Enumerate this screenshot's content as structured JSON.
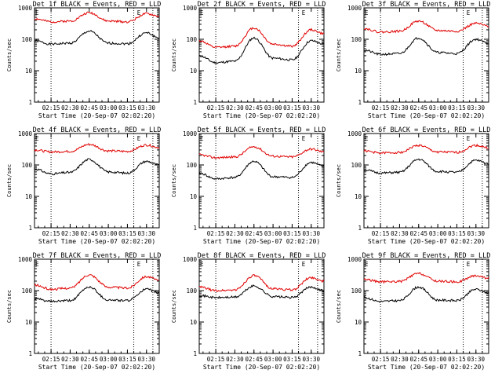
{
  "colors": {
    "events": "#000000",
    "lld": "#e00000",
    "frame": "#000000",
    "background": "#ffffff"
  },
  "chart_data": [
    {
      "type": "line",
      "title": "Det 1f BLACK = Events, RED = LLD",
      "xlabel": "Start Time (20-Sep-07 02:02:20)",
      "ylabel": "Counts/sec",
      "yscale": "log",
      "ylim": [
        1,
        1000
      ],
      "yticks": [
        "1",
        "10",
        "100",
        "1000"
      ],
      "xticks": [
        "02:15",
        "02:30",
        "02:45",
        "03:00",
        "03:15",
        "03:30"
      ],
      "x": [
        "02:02",
        "02:15",
        "02:30",
        "02:45",
        "03:00",
        "03:15",
        "03:30",
        "03:40"
      ],
      "series": [
        {
          "name": "BLACK = Events",
          "values": [
            90,
            70,
            75,
            180,
            75,
            72,
            160,
            110
          ]
        },
        {
          "name": "RED = LLD",
          "values": [
            450,
            360,
            380,
            700,
            380,
            360,
            650,
            540
          ]
        }
      ],
      "markers": [
        "E",
        "E"
      ]
    },
    {
      "type": "line",
      "title": "Det 2f BLACK = Events, RED = LLD",
      "xlabel": "Start Time (20-Sep-07 02:02:20)",
      "ylabel": "Counts/sec",
      "yscale": "log",
      "ylim": [
        1,
        1000
      ],
      "yticks": [
        "1",
        "10",
        "100",
        "1000"
      ],
      "xticks": [
        "02:15",
        "02:30",
        "02:45",
        "03:00",
        "03:15",
        "03:30"
      ],
      "x": [
        "02:02",
        "02:15",
        "02:30",
        "02:45",
        "03:00",
        "03:15",
        "03:30",
        "03:40"
      ],
      "series": [
        {
          "name": "BLACK = Events",
          "values": [
            30,
            18,
            20,
            110,
            25,
            22,
            90,
            70
          ]
        },
        {
          "name": "RED = LLD",
          "values": [
            90,
            55,
            60,
            230,
            70,
            60,
            200,
            150
          ]
        }
      ],
      "markers": [
        "E",
        "E"
      ]
    },
    {
      "type": "line",
      "title": "Det 3f BLACK = Events, RED = LLD",
      "xlabel": "Start Time (20-Sep-07 02:02:20)",
      "ylabel": "Counts/sec",
      "yscale": "log",
      "ylim": [
        1,
        1000
      ],
      "yticks": [
        "1",
        "10",
        "100",
        "1000"
      ],
      "xticks": [
        "02:15",
        "02:30",
        "02:45",
        "03:00",
        "03:15",
        "03:30"
      ],
      "x": [
        "02:02",
        "02:15",
        "02:30",
        "02:45",
        "03:00",
        "03:15",
        "03:30",
        "03:40"
      ],
      "series": [
        {
          "name": "BLACK = Events",
          "values": [
            45,
            33,
            35,
            110,
            38,
            35,
            100,
            75
          ]
        },
        {
          "name": "RED = LLD",
          "values": [
            220,
            170,
            180,
            380,
            190,
            180,
            320,
            260
          ]
        }
      ],
      "markers": [
        "E",
        "E"
      ]
    },
    {
      "type": "line",
      "title": "Det 4f BLACK = Events, RED = LLD",
      "xlabel": "Start Time (20-Sep-07 02:02:20)",
      "ylabel": "Counts/sec",
      "yscale": "log",
      "ylim": [
        1,
        1000
      ],
      "yticks": [
        "1",
        "10",
        "100",
        "1000"
      ],
      "xticks": [
        "02:15",
        "02:30",
        "02:45",
        "03:00",
        "03:15",
        "03:30"
      ],
      "x": [
        "02:02",
        "02:15",
        "02:30",
        "02:45",
        "03:00",
        "03:15",
        "03:30",
        "03:40"
      ],
      "series": [
        {
          "name": "BLACK = Events",
          "values": [
            75,
            52,
            58,
            150,
            60,
            55,
            130,
            100
          ]
        },
        {
          "name": "RED = LLD",
          "values": [
            300,
            260,
            270,
            450,
            280,
            270,
            430,
            360
          ]
        }
      ],
      "markers": [
        "E",
        "E"
      ]
    },
    {
      "type": "line",
      "title": "Det 5f BLACK = Events, RED = LLD",
      "xlabel": "Start Time (20-Sep-07 02:02:20)",
      "ylabel": "Counts/sec",
      "yscale": "log",
      "ylim": [
        1,
        1000
      ],
      "yticks": [
        "1",
        "10",
        "100",
        "1000"
      ],
      "xticks": [
        "02:15",
        "02:30",
        "02:45",
        "03:00",
        "03:15",
        "03:30"
      ],
      "x": [
        "02:02",
        "02:15",
        "02:30",
        "02:45",
        "03:00",
        "03:15",
        "03:30",
        "03:40"
      ],
      "series": [
        {
          "name": "BLACK = Events",
          "values": [
            55,
            36,
            40,
            130,
            42,
            40,
            120,
            90
          ]
        },
        {
          "name": "RED = LLD",
          "values": [
            210,
            170,
            180,
            380,
            190,
            180,
            320,
            260
          ]
        }
      ],
      "markers": [
        "E",
        "E"
      ]
    },
    {
      "type": "line",
      "title": "Det 6f BLACK = Events, RED = LLD",
      "xlabel": "Start Time (20-Sep-07 02:02:20)",
      "ylabel": "Counts/sec",
      "yscale": "log",
      "ylim": [
        1,
        1000
      ],
      "yticks": [
        "1",
        "10",
        "100",
        "1000"
      ],
      "xticks": [
        "02:15",
        "02:30",
        "02:45",
        "03:00",
        "03:15",
        "03:30"
      ],
      "x": [
        "02:02",
        "02:15",
        "02:30",
        "02:45",
        "03:00",
        "03:15",
        "03:30",
        "03:40"
      ],
      "series": [
        {
          "name": "BLACK = Events",
          "values": [
            70,
            55,
            58,
            150,
            62,
            58,
            140,
            110
          ]
        },
        {
          "name": "RED = LLD",
          "values": [
            280,
            240,
            250,
            420,
            260,
            250,
            420,
            350
          ]
        }
      ],
      "markers": [
        "E",
        "E"
      ]
    },
    {
      "type": "line",
      "title": "Det 7f BLACK = Events, RED = LLD",
      "xlabel": "Start Time (20-Sep-07 02:02:20)",
      "ylabel": "Counts/sec",
      "yscale": "log",
      "ylim": [
        1,
        1000
      ],
      "yticks": [
        "1",
        "10",
        "100",
        "1000"
      ],
      "xticks": [
        "02:15",
        "02:30",
        "02:45",
        "03:00",
        "03:15",
        "03:30"
      ],
      "x": [
        "02:02",
        "02:15",
        "02:30",
        "02:45",
        "03:00",
        "03:15",
        "03:30",
        "03:40"
      ],
      "series": [
        {
          "name": "BLACK = Events",
          "values": [
            55,
            45,
            48,
            130,
            50,
            48,
            110,
            85
          ]
        },
        {
          "name": "RED = LLD",
          "values": [
            150,
            110,
            120,
            320,
            130,
            120,
            280,
            210
          ]
        }
      ],
      "markers": [
        "E",
        "E"
      ]
    },
    {
      "type": "line",
      "title": "Det 8f BLACK = Events, RED = LLD",
      "xlabel": "Start Time (20-Sep-07 02:02:20)",
      "ylabel": "Counts/sec",
      "yscale": "log",
      "ylim": [
        1,
        1000
      ],
      "yticks": [
        "1",
        "10",
        "100",
        "1000"
      ],
      "xticks": [
        "02:15",
        "02:30",
        "02:45",
        "03:00",
        "03:15",
        "03:30"
      ],
      "x": [
        "02:02",
        "02:15",
        "02:30",
        "02:45",
        "03:00",
        "03:15",
        "03:30",
        "03:40"
      ],
      "series": [
        {
          "name": "BLACK = Events",
          "values": [
            70,
            60,
            62,
            140,
            65,
            60,
            130,
            100
          ]
        },
        {
          "name": "RED = LLD",
          "values": [
            130,
            100,
            105,
            300,
            115,
            105,
            260,
            200
          ]
        }
      ],
      "markers": [
        "E",
        "E"
      ]
    },
    {
      "type": "line",
      "title": "Det 9f BLACK = Events, RED = LLD",
      "xlabel": "Start Time (20-Sep-07 02:02:20)",
      "ylabel": "Counts/sec",
      "yscale": "log",
      "ylim": [
        1,
        1000
      ],
      "yticks": [
        "1",
        "10",
        "100",
        "1000"
      ],
      "xticks": [
        "02:15",
        "02:30",
        "02:45",
        "03:00",
        "03:15",
        "03:30"
      ],
      "x": [
        "02:02",
        "02:15",
        "02:30",
        "02:45",
        "03:00",
        "03:15",
        "03:30",
        "03:40"
      ],
      "series": [
        {
          "name": "BLACK = Events",
          "values": [
            60,
            45,
            48,
            130,
            50,
            48,
            110,
            85
          ]
        },
        {
          "name": "RED = LLD",
          "values": [
            230,
            190,
            195,
            350,
            200,
            190,
            300,
            250
          ]
        }
      ],
      "markers": [
        "E",
        "E"
      ]
    }
  ]
}
